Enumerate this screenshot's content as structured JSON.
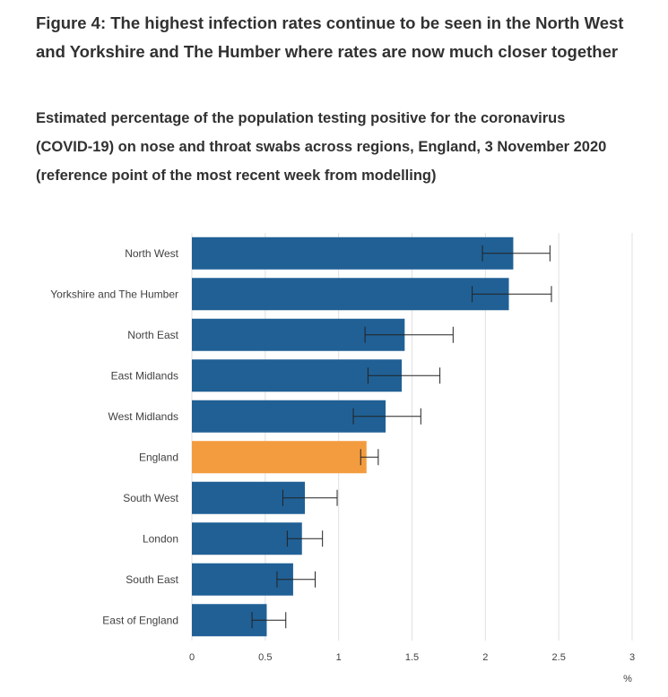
{
  "figure": {
    "title": "Figure 4: The highest infection rates continue to be seen in the North West and Yorkshire and The Humber where rates are now much closer together",
    "subtitle": "Estimated percentage of the population testing positive for the coronavirus (COVID-19) on nose and throat swabs across regions, England, 3 November 2020 (reference point of the most recent week from modelling)"
  },
  "colors": {
    "region": "#206095",
    "england": "#f39c3f",
    "grid": "#e0e0e0",
    "error_bar": "#222222"
  },
  "chart_data": {
    "type": "bar",
    "orientation": "horizontal",
    "categories": [
      "North West",
      "Yorkshire and The Humber",
      "North East",
      "East Midlands",
      "West Midlands",
      "England",
      "South West",
      "London",
      "South East",
      "East of England"
    ],
    "values": [
      2.19,
      2.16,
      1.45,
      1.43,
      1.32,
      1.19,
      0.77,
      0.75,
      0.69,
      0.51
    ],
    "lower": [
      1.98,
      1.91,
      1.18,
      1.2,
      1.1,
      1.15,
      0.62,
      0.65,
      0.58,
      0.41
    ],
    "upper": [
      2.44,
      2.45,
      1.78,
      1.69,
      1.56,
      1.27,
      0.99,
      0.89,
      0.84,
      0.64
    ],
    "highlight": "England",
    "xlim": [
      0,
      3
    ],
    "xticks": [
      0,
      0.5,
      1,
      1.5,
      2,
      2.5,
      3
    ],
    "xtick_labels": [
      "0",
      "0.5",
      "1",
      "1.5",
      "2",
      "2.5",
      "3"
    ],
    "xlabel": "%",
    "grid": true
  }
}
